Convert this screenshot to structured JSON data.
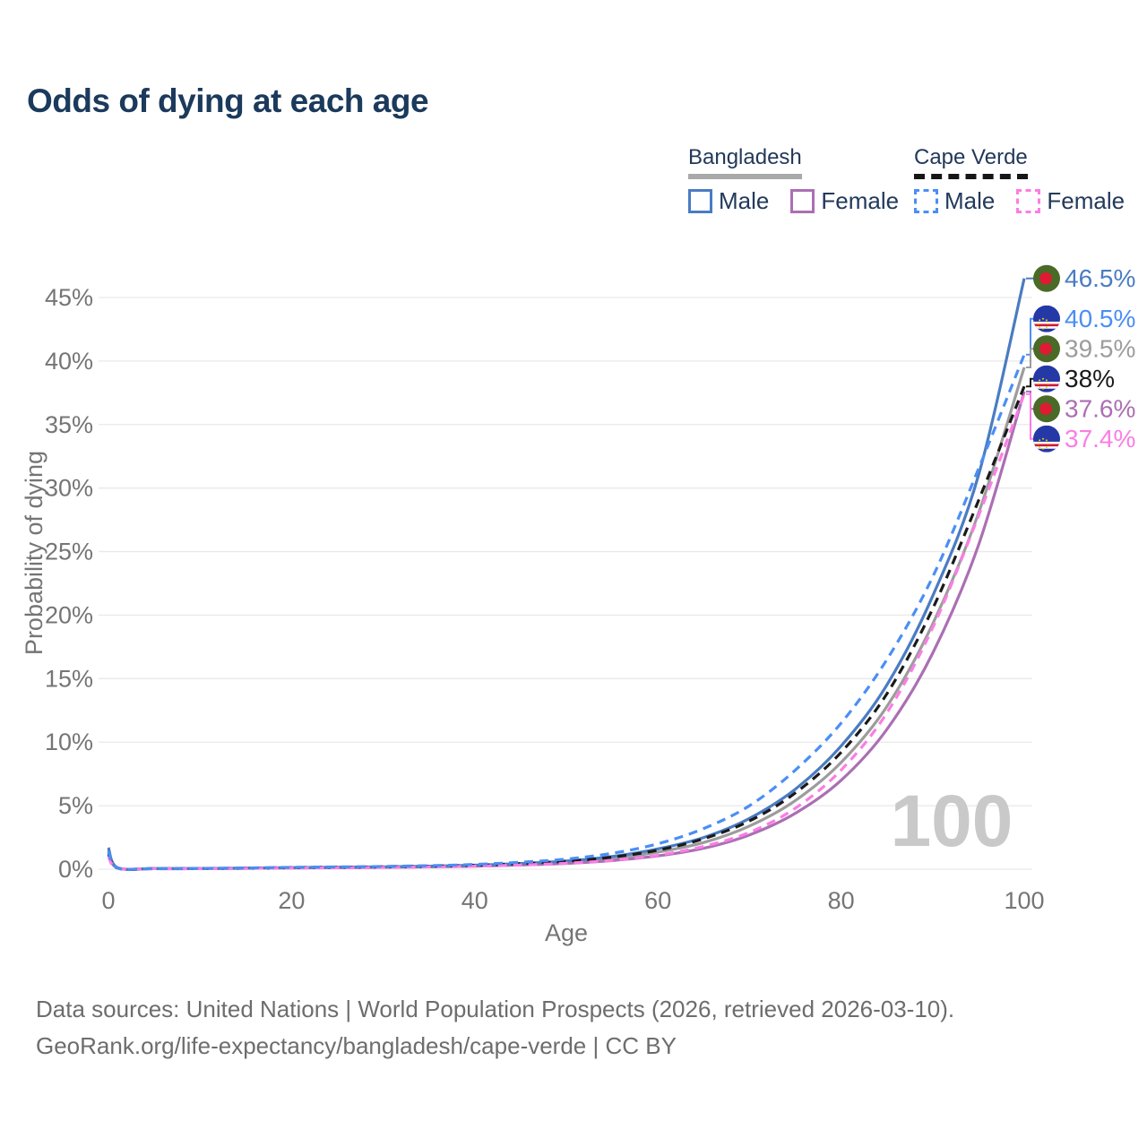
{
  "title": "Odds of dying at each age",
  "legend": {
    "groups": [
      {
        "name": "Bangladesh",
        "line_style": "solid",
        "underline_color": "#a9a9a9",
        "items": [
          {
            "label": "Male",
            "color": "#4a7cc2"
          },
          {
            "label": "Female",
            "color": "#ab6fb3"
          }
        ]
      },
      {
        "name": "Cape Verde",
        "line_style": "dashed",
        "underline_color": "#161616",
        "items": [
          {
            "label": "Male",
            "color": "#4b8ef5"
          },
          {
            "label": "Female",
            "color": "#fb7de5"
          }
        ]
      }
    ]
  },
  "chart_data": {
    "type": "line",
    "title": "Odds of dying at each age",
    "xlabel": "Age",
    "ylabel": "Probability of dying",
    "xlim": [
      0,
      100
    ],
    "ylim": [
      0,
      47
    ],
    "x_ticks": [
      0,
      20,
      40,
      60,
      80,
      100
    ],
    "y_ticks": [
      0,
      5,
      10,
      15,
      20,
      25,
      30,
      35,
      40,
      45
    ],
    "y_tick_suffix": "%",
    "grid": true,
    "legend_position": "top-right",
    "watermark": "100",
    "x": [
      0,
      1,
      5,
      10,
      15,
      20,
      25,
      30,
      35,
      40,
      45,
      50,
      55,
      60,
      65,
      70,
      75,
      80,
      85,
      90,
      95,
      100
    ],
    "series": [
      {
        "name": "Bangladesh Male",
        "country": "Bangladesh",
        "sex": "Male",
        "color": "#4a7cc2",
        "dash": "solid",
        "flag": "bd",
        "z": 3,
        "end_label": "46.5%",
        "values": [
          1.7,
          0.12,
          0.05,
          0.06,
          0.09,
          0.13,
          0.16,
          0.19,
          0.24,
          0.32,
          0.45,
          0.65,
          1.0,
          1.6,
          2.5,
          4.0,
          6.3,
          9.7,
          14.5,
          21.5,
          31.0,
          46.5
        ]
      },
      {
        "name": "Cape Verde Male",
        "country": "Cape Verde",
        "sex": "Male",
        "color": "#4b8ef5",
        "dash": "dashed",
        "flag": "cv",
        "z": 6,
        "end_label": "40.5%",
        "values": [
          1.4,
          0.1,
          0.05,
          0.06,
          0.1,
          0.15,
          0.18,
          0.22,
          0.28,
          0.38,
          0.55,
          0.8,
          1.25,
          2.0,
          3.2,
          5.0,
          7.8,
          11.5,
          16.5,
          23.0,
          31.5,
          40.5
        ]
      },
      {
        "name": "Bangladesh Total",
        "country": "Bangladesh",
        "sex": "Total",
        "color": "#9c9c9c",
        "dash": "solid",
        "flag": "bd",
        "z": 1,
        "end_label": "39.5%",
        "values": [
          1.5,
          0.11,
          0.05,
          0.05,
          0.08,
          0.11,
          0.14,
          0.17,
          0.21,
          0.28,
          0.39,
          0.56,
          0.85,
          1.35,
          2.1,
          3.4,
          5.4,
          8.4,
          12.8,
          19.3,
          28.0,
          39.5
        ]
      },
      {
        "name": "Cape Verde Total",
        "country": "Cape Verde",
        "sex": "Total",
        "color": "#1a1a1a",
        "dash": "dashed",
        "flag": "cv",
        "z": 4,
        "end_label": "38%",
        "values": [
          1.2,
          0.09,
          0.04,
          0.05,
          0.08,
          0.12,
          0.15,
          0.18,
          0.23,
          0.31,
          0.44,
          0.63,
          0.95,
          1.5,
          2.4,
          3.8,
          6.0,
          9.2,
          13.8,
          20.5,
          29.0,
          38.0
        ]
      },
      {
        "name": "Bangladesh Female",
        "country": "Bangladesh",
        "sex": "Female",
        "color": "#ab6fb3",
        "dash": "solid",
        "flag": "bd",
        "z": 2,
        "end_label": "37.6%",
        "values": [
          1.3,
          0.1,
          0.04,
          0.05,
          0.07,
          0.1,
          0.12,
          0.15,
          0.18,
          0.24,
          0.33,
          0.46,
          0.68,
          1.05,
          1.65,
          2.7,
          4.4,
          7.0,
          11.0,
          17.0,
          25.5,
          37.6
        ]
      },
      {
        "name": "Cape Verde Female",
        "country": "Cape Verde",
        "sex": "Female",
        "color": "#fb7de5",
        "dash": "dashed",
        "flag": "cv",
        "z": 5,
        "end_label": "37.4%",
        "values": [
          1.0,
          0.08,
          0.04,
          0.04,
          0.06,
          0.09,
          0.11,
          0.14,
          0.18,
          0.24,
          0.33,
          0.47,
          0.7,
          1.1,
          1.8,
          2.9,
          4.8,
          7.8,
          12.3,
          19.0,
          27.8,
          37.4
        ]
      }
    ],
    "flags": {
      "bd": {
        "bg": "#4a6a28",
        "dot": "#e01a33"
      },
      "cv": {
        "bg": "#2439a5",
        "stripe_white": "#ffffff",
        "stripe_red": "#d01935",
        "star": "#f7d116"
      }
    },
    "colors": {
      "grid": "#e9e9e9",
      "tick": "#757575",
      "watermark": "#c9c9c9"
    }
  },
  "footer": {
    "line1": "Data sources: United Nations | World Population Prospects (2026, retrieved 2026-03-10).",
    "line2": "GeoRank.org/life-expectancy/bangladesh/cape-verde | CC BY"
  }
}
